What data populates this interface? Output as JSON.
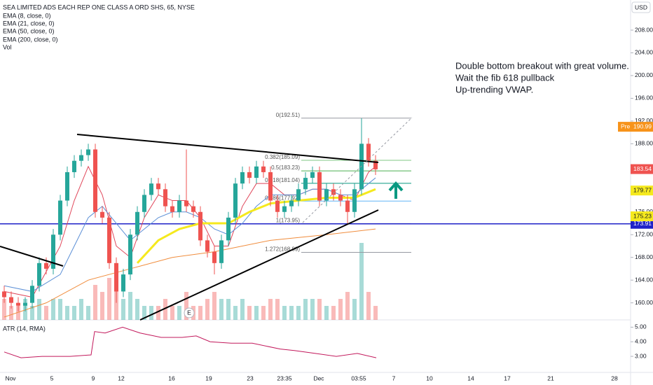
{
  "chart_data": {
    "type": "candlestick",
    "title": "SEA LIMITED ADS EACH REP ONE CLASS A ORD SHS, 65, NYSE",
    "indicator_labels": [
      "EMA (8, close, 0)",
      "EMA (21, close, 0)",
      "EMA (50, close, 0)",
      "EMA (200, close, 0)",
      "Vol"
    ],
    "currency": "USD",
    "annotation": [
      "Double bottom breakout with great volume.",
      "Wait the fib 618 pullback",
      "Up-trending VWAP."
    ],
    "event_marker": "E",
    "x_labels": [
      "Nov",
      "5",
      "9",
      "12",
      "16",
      "19",
      "23",
      "23:35",
      "Dec",
      "03:55",
      "7",
      "10",
      "14",
      "17",
      "21",
      "28"
    ],
    "open": [
      162,
      161,
      160,
      159.5,
      160,
      163,
      167,
      166,
      172,
      178,
      183,
      185,
      186,
      187,
      176,
      175,
      167,
      162,
      165,
      172,
      176,
      179,
      181,
      180,
      177,
      176,
      178,
      177,
      176,
      171,
      169,
      167,
      171,
      175,
      181,
      183,
      182,
      184,
      183,
      178,
      176,
      177,
      178,
      180,
      182,
      183,
      178,
      180,
      179,
      178,
      176,
      180,
      188,
      185
    ],
    "high": [
      163,
      162,
      161,
      161,
      164,
      168,
      168,
      173,
      179,
      184,
      186,
      187,
      188,
      188,
      177,
      176,
      168,
      166,
      173,
      177,
      180,
      182,
      182,
      181,
      178,
      179,
      187,
      178,
      177,
      172,
      170,
      172,
      176,
      182,
      184,
      184,
      185,
      185,
      184,
      179,
      178,
      179,
      181,
      183,
      184,
      184,
      181,
      181,
      180,
      179,
      181,
      192.5,
      189,
      186
    ],
    "low": [
      160,
      159,
      158.5,
      158.5,
      159,
      162,
      165,
      165,
      171,
      177,
      182,
      184,
      185,
      175,
      174,
      166,
      160,
      161,
      164,
      171,
      175,
      178,
      179,
      176,
      175,
      175,
      176,
      175,
      170,
      168,
      165,
      166,
      170,
      174,
      180,
      181,
      181,
      182,
      177,
      175,
      175,
      176,
      177,
      179,
      181,
      177,
      177,
      178,
      177,
      174,
      175,
      179,
      184,
      182.5
    ],
    "close": [
      161,
      160,
      159.5,
      160,
      163,
      167,
      166,
      172,
      178,
      183,
      185,
      186,
      187,
      176,
      175,
      167,
      162,
      165,
      172,
      176,
      179,
      181,
      180,
      177,
      176,
      178,
      177,
      176,
      171,
      169,
      167,
      171,
      175,
      181,
      183,
      182,
      184,
      183,
      178,
      176,
      177,
      178,
      180,
      182,
      183,
      178,
      180,
      179,
      178,
      176,
      180,
      188,
      185,
      183.5
    ],
    "volume": [
      3,
      2,
      2,
      3,
      2,
      3,
      2,
      3,
      3,
      2,
      2,
      3,
      2,
      5,
      4,
      6,
      5,
      3,
      4,
      3,
      2,
      2,
      2,
      3,
      2,
      2,
      4,
      2,
      2,
      3,
      4,
      3,
      3,
      2,
      3,
      2,
      2,
      2,
      3,
      3,
      2,
      2,
      2,
      3,
      3,
      3,
      2,
      2,
      3,
      4,
      3,
      11,
      4,
      2
    ],
    "up_color": "#26a69a",
    "down_color": "#ef5350",
    "lines": [
      {
        "color": "#e0465a",
        "width": 1,
        "x": [
          0,
          4,
          8,
          10,
          12,
          14,
          16,
          18,
          20,
          22,
          24,
          26,
          28,
          30,
          32,
          34,
          36,
          38,
          40,
          42,
          44,
          46,
          48,
          50,
          52,
          53
        ],
        "values": [
          162,
          161,
          170,
          178,
          184,
          179,
          170,
          168,
          175,
          179,
          178,
          178,
          175,
          170,
          170,
          177,
          181,
          181,
          179,
          179,
          180,
          180,
          179,
          178,
          183,
          184
        ]
      },
      {
        "color": "#5b8fd6",
        "width": 1,
        "x": [
          0,
          4,
          8,
          10,
          12,
          14,
          16,
          18,
          20,
          22,
          24,
          26,
          28,
          30,
          32,
          34,
          36,
          38,
          40,
          42,
          44,
          46,
          48,
          50,
          52,
          53
        ],
        "values": [
          163,
          162,
          165,
          170,
          175,
          177,
          174,
          171,
          173,
          175,
          176,
          176,
          175,
          173,
          172,
          174,
          177,
          179,
          179,
          179,
          180,
          180,
          179,
          179,
          181,
          182
        ]
      },
      {
        "color": "#f5e91e",
        "width": 3,
        "x": [
          19,
          22,
          25,
          28,
          32,
          35,
          38,
          42,
          46,
          50,
          53
        ],
        "values": [
          167,
          171,
          173,
          174,
          174,
          176,
          177.5,
          178,
          178.5,
          178.5,
          180
        ]
      },
      {
        "color": "#f08c3c",
        "width": 1,
        "x": [
          0,
          6,
          12,
          18,
          24,
          30,
          38,
          46,
          53
        ],
        "values": [
          157.5,
          160,
          164,
          166,
          168,
          169,
          171,
          172,
          173
        ]
      }
    ],
    "fib_levels": [
      {
        "label": "0(192.51)",
        "price": 192.51,
        "color": "#9598a1"
      },
      {
        "label": "0.382(185.09)",
        "price": 185.09,
        "color": "#81c784"
      },
      {
        "label": "0.5(183.23)",
        "price": 183.23,
        "color": "#4caf50"
      },
      {
        "label": "0.618(181.04)",
        "price": 181.04,
        "color": "#089981"
      },
      {
        "label": "0.786(177.92)",
        "price": 177.92,
        "color": "#64b5f6"
      },
      {
        "label": "1(173.95)",
        "price": 173.95,
        "color": "#9598a1"
      },
      {
        "label": "1.272(168.89)",
        "price": 168.89,
        "color": "#9598a1"
      }
    ],
    "support_line": {
      "price": 173.91,
      "label": "173.91",
      "color": "#1e22c8"
    },
    "price_badges": [
      {
        "prefix": "Pre",
        "price": 190.99,
        "label": "190.99",
        "color": "#f7931a"
      },
      {
        "price": 183.54,
        "label": "183.54",
        "color": "#ef5350"
      },
      {
        "price": 179.77,
        "label": "179.77",
        "color": "#f5e91e"
      },
      {
        "price": 175.23,
        "label": "175.23",
        "color": "#f5e91e"
      }
    ],
    "ylim": [
      157,
      213.3
    ],
    "yticks": [
      {
        "value": 160,
        "label": "160.00"
      },
      {
        "value": 164,
        "label": "164.00"
      },
      {
        "value": 168,
        "label": "168.00"
      },
      {
        "value": 172,
        "label": "172.00"
      },
      {
        "value": 176,
        "label": "176.00"
      },
      {
        "value": 188,
        "label": "188.00"
      },
      {
        "value": 192,
        "label": "192.00"
      },
      {
        "value": 196,
        "label": "196.00"
      },
      {
        "value": 200,
        "label": "200.00"
      },
      {
        "value": 204,
        "label": "204.00"
      },
      {
        "value": 208,
        "label": "208.00"
      }
    ],
    "atr": {
      "label": "ATR (14, RMA)",
      "color": "#c2185b",
      "x": [
        0,
        2.4,
        5.4,
        9.4,
        12.4,
        12.9,
        14.4,
        16.9,
        19.4,
        22.4,
        25.4,
        27.4,
        29.4,
        32.4,
        35.4,
        39.4,
        41.4,
        44.4,
        47.4,
        50.4,
        53.1
      ],
      "values": [
        3.3,
        2.9,
        3.0,
        3.0,
        3.1,
        4.7,
        4.6,
        5.0,
        4.6,
        4.3,
        4.3,
        4.4,
        4.0,
        3.9,
        3.9,
        3.5,
        3.4,
        3.2,
        3.0,
        3.2,
        2.9
      ],
      "ylim": [
        1.9,
        5.45
      ],
      "yticks": [
        {
          "value": 3,
          "label": "3.00"
        },
        {
          "value": 4,
          "label": "4.00"
        },
        {
          "value": 5,
          "label": "5.00"
        }
      ]
    }
  }
}
